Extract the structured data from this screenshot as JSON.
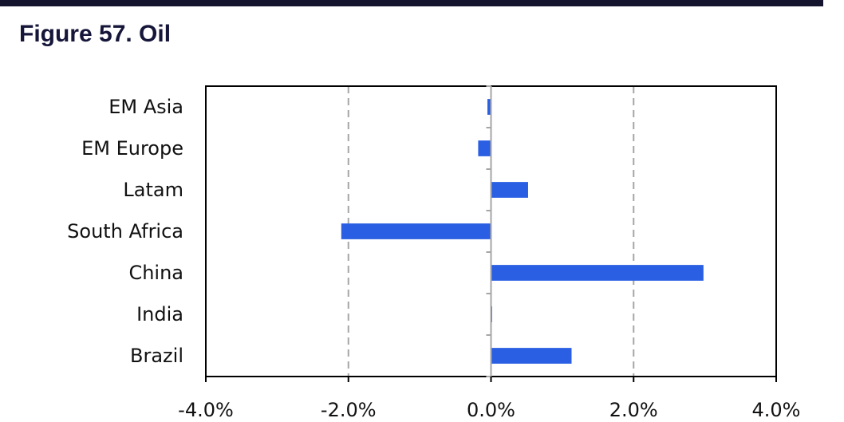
{
  "header": {
    "title": "Figure 57. Oil"
  },
  "colors": {
    "bar": "#2a5fe3",
    "header_bar": "#14142e",
    "title": "#16163a",
    "gridline": "#a6a6a6",
    "axis": "#000000"
  },
  "chart_data": {
    "type": "bar",
    "orientation": "horizontal",
    "title": "Figure 57. Oil",
    "xlabel": "",
    "ylabel": "",
    "categories": [
      "EM Asia",
      "EM Europe",
      "Latam",
      "South Africa",
      "China",
      "India",
      "Brazil"
    ],
    "values": [
      -0.05,
      -0.18,
      0.52,
      -2.1,
      2.98,
      0.01,
      1.13
    ],
    "xlim": [
      -4.0,
      4.0
    ],
    "xticks": [
      -4.0,
      -2.0,
      0.0,
      2.0,
      4.0
    ],
    "xtick_labels": [
      "-4.0%",
      "-2.0%",
      "0.0%",
      "2.0%",
      "4.0%"
    ],
    "value_unit": "%",
    "grid": "vertical dashed",
    "legend": "none"
  }
}
